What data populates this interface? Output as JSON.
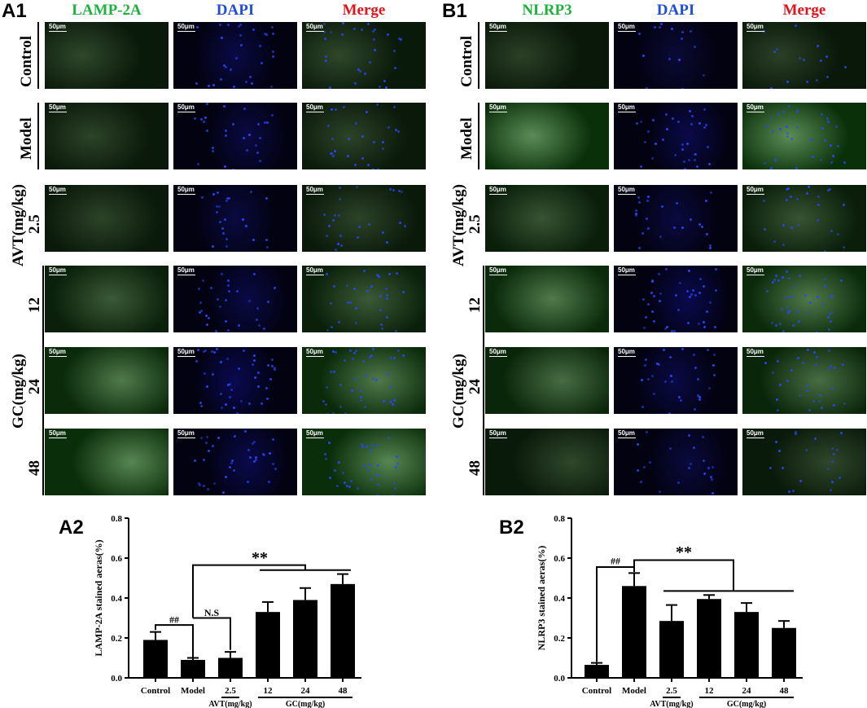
{
  "figure": {
    "panel_a1": "A1",
    "panel_b1": "B1",
    "panel_a2": "A2",
    "panel_b2": "B2",
    "a_columns": [
      {
        "label": "LAMP-2A",
        "color": "#1db33b"
      },
      {
        "label": "DAPI",
        "color": "#1f4fd6"
      },
      {
        "label": "Merge",
        "color": "#e0141a"
      }
    ],
    "b_columns": [
      {
        "label": "NLRP3",
        "color": "#1db33b"
      },
      {
        "label": "DAPI",
        "color": "#1f4fd6"
      },
      {
        "label": "Merge",
        "color": "#e0141a"
      }
    ],
    "scale_bar": "50μm",
    "row_labels": {
      "control": "Control",
      "model": "Model",
      "avt": "AVT(mg/kg)",
      "avt_dose": "2.5",
      "gc": "GC(mg/kg)",
      "gc_doses": [
        "12",
        "24",
        "48"
      ]
    },
    "a_green_intensity": [
      0.15,
      0.12,
      0.12,
      0.3,
      0.55,
      0.65
    ],
    "a_blue_intensity": [
      0.5,
      0.45,
      0.4,
      0.5,
      0.7,
      0.6
    ],
    "b_green_intensity": [
      0.1,
      0.7,
      0.25,
      0.55,
      0.45,
      0.15
    ],
    "b_blue_intensity": [
      0.25,
      0.55,
      0.4,
      0.65,
      0.5,
      0.35
    ]
  },
  "chart_data": [
    {
      "type": "bar",
      "ylabel": "LAMP-2A stained aeras(%)",
      "ylim": [
        0,
        0.8
      ],
      "yticks": [
        "0.0",
        "0.2",
        "0.4",
        "0.6",
        "0.8"
      ],
      "categories": [
        "Control",
        "Model",
        "2.5",
        "12",
        "24",
        "48"
      ],
      "values": [
        0.19,
        0.09,
        0.1,
        0.33,
        0.39,
        0.47
      ],
      "errors": [
        0.04,
        0.01,
        0.03,
        0.05,
        0.06,
        0.05
      ],
      "group_labels": {
        "avt": "AVT(mg/kg)",
        "gc": "GC(mg/kg)"
      },
      "annotations": {
        "hash": "##",
        "ns": "N.S",
        "star": "**"
      },
      "bar_color": "#000000"
    },
    {
      "type": "bar",
      "ylabel": "NLRP3 stained aeras(%)",
      "ylim": [
        0,
        0.8
      ],
      "yticks": [
        "0.0",
        "0.2",
        "0.4",
        "0.6",
        "0.8"
      ],
      "categories": [
        "Control",
        "Model",
        "2.5",
        "12",
        "24",
        "48"
      ],
      "values": [
        0.065,
        0.46,
        0.285,
        0.395,
        0.33,
        0.25
      ],
      "errors": [
        0.01,
        0.065,
        0.08,
        0.02,
        0.045,
        0.035
      ],
      "group_labels": {
        "avt": "AVT(mg/kg)",
        "gc": "GC(mg/kg)"
      },
      "annotations": {
        "hash": "##",
        "star": "**"
      },
      "bar_color": "#000000"
    }
  ]
}
